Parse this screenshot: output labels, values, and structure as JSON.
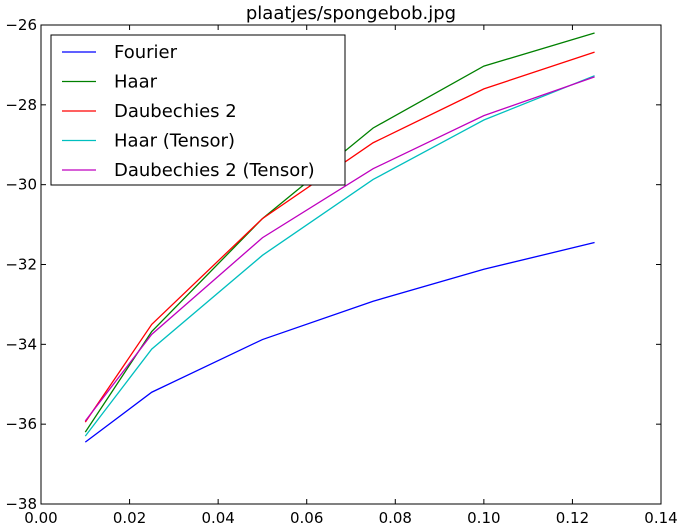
{
  "chart_data": {
    "type": "line",
    "title": "plaatjes/spongebob.jpg",
    "xlabel": "",
    "ylabel": "",
    "xlim": [
      0.0,
      0.14
    ],
    "ylim": [
      -38,
      -26
    ],
    "x_ticks": [
      0.0,
      0.02,
      0.04,
      0.06,
      0.08,
      0.1,
      0.12,
      0.14
    ],
    "x_tick_labels": [
      "0.00",
      "0.02",
      "0.04",
      "0.06",
      "0.08",
      "0.10",
      "0.12",
      "0.14"
    ],
    "y_ticks": [
      -38,
      -36,
      -34,
      -32,
      -30,
      -28,
      -26
    ],
    "y_tick_labels": [
      "−38",
      "−36",
      "−34",
      "−32",
      "−30",
      "−28",
      "−26"
    ],
    "grid": false,
    "legend_position": "top-left",
    "x": [
      0.01,
      0.025,
      0.05,
      0.075,
      0.1,
      0.125
    ],
    "series": [
      {
        "name": "Fourier",
        "color": "#0000ff",
        "values": [
          -36.45,
          -35.2,
          -33.88,
          -32.92,
          -32.12,
          -31.45
        ]
      },
      {
        "name": "Haar",
        "color": "#008000",
        "values": [
          -36.2,
          -33.68,
          -30.85,
          -28.58,
          -27.03,
          -26.2
        ]
      },
      {
        "name": "Daubechies 2",
        "color": "#ff0000",
        "values": [
          -35.95,
          -33.5,
          -30.85,
          -28.95,
          -27.6,
          -26.68
        ]
      },
      {
        "name": "Haar (Tensor)",
        "color": "#00bfbf",
        "values": [
          -36.3,
          -34.12,
          -31.77,
          -29.87,
          -28.38,
          -27.27
        ]
      },
      {
        "name": "Daubechies 2 (Tensor)",
        "color": "#bf00bf",
        "values": [
          -35.92,
          -33.75,
          -31.33,
          -29.6,
          -28.27,
          -27.3
        ]
      }
    ]
  }
}
